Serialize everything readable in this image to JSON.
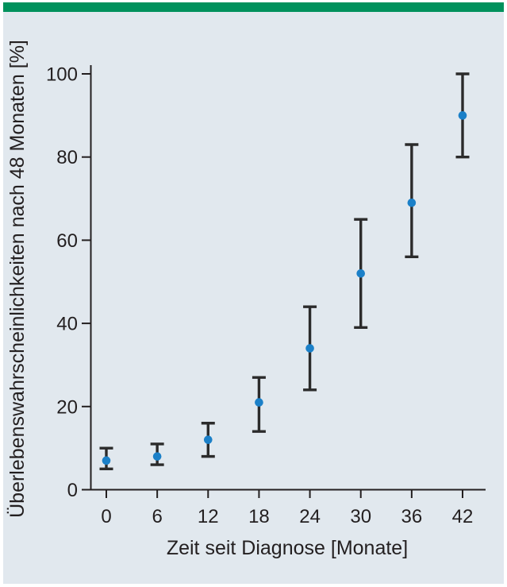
{
  "page": {
    "background_color": "#ffffff",
    "panel_color": "#E1E8EE",
    "top_bar_color": "#00915C"
  },
  "chart_data": {
    "type": "scatter",
    "title": "",
    "xlabel": "Zeit seit Diagnose [Monate]",
    "ylabel": "Überlebenswahrscheinlichkeiten nach 48 Monaten [%]",
    "x": [
      0,
      6,
      12,
      18,
      24,
      30,
      36,
      42
    ],
    "series": [
      {
        "name": "Überlebenswahrscheinlichkeit",
        "values": [
          7,
          8,
          12,
          21,
          34,
          52,
          69,
          90
        ],
        "error_low": [
          5,
          6,
          8,
          14,
          24,
          39,
          56,
          80
        ],
        "error_high": [
          10,
          11,
          16,
          27,
          44,
          65,
          83,
          100
        ]
      }
    ],
    "xticks": [
      0,
      6,
      12,
      18,
      24,
      30,
      36,
      42
    ],
    "yticks": [
      0,
      20,
      40,
      60,
      80,
      100
    ],
    "ylim": [
      0,
      100
    ],
    "xlim": [
      0,
      42
    ],
    "grid": false,
    "legend_position": "none",
    "marker_color": "#1B80C8",
    "errorbar_color": "#2B2B2B",
    "axis_color": "#231F20",
    "text_color": "#231F20"
  }
}
